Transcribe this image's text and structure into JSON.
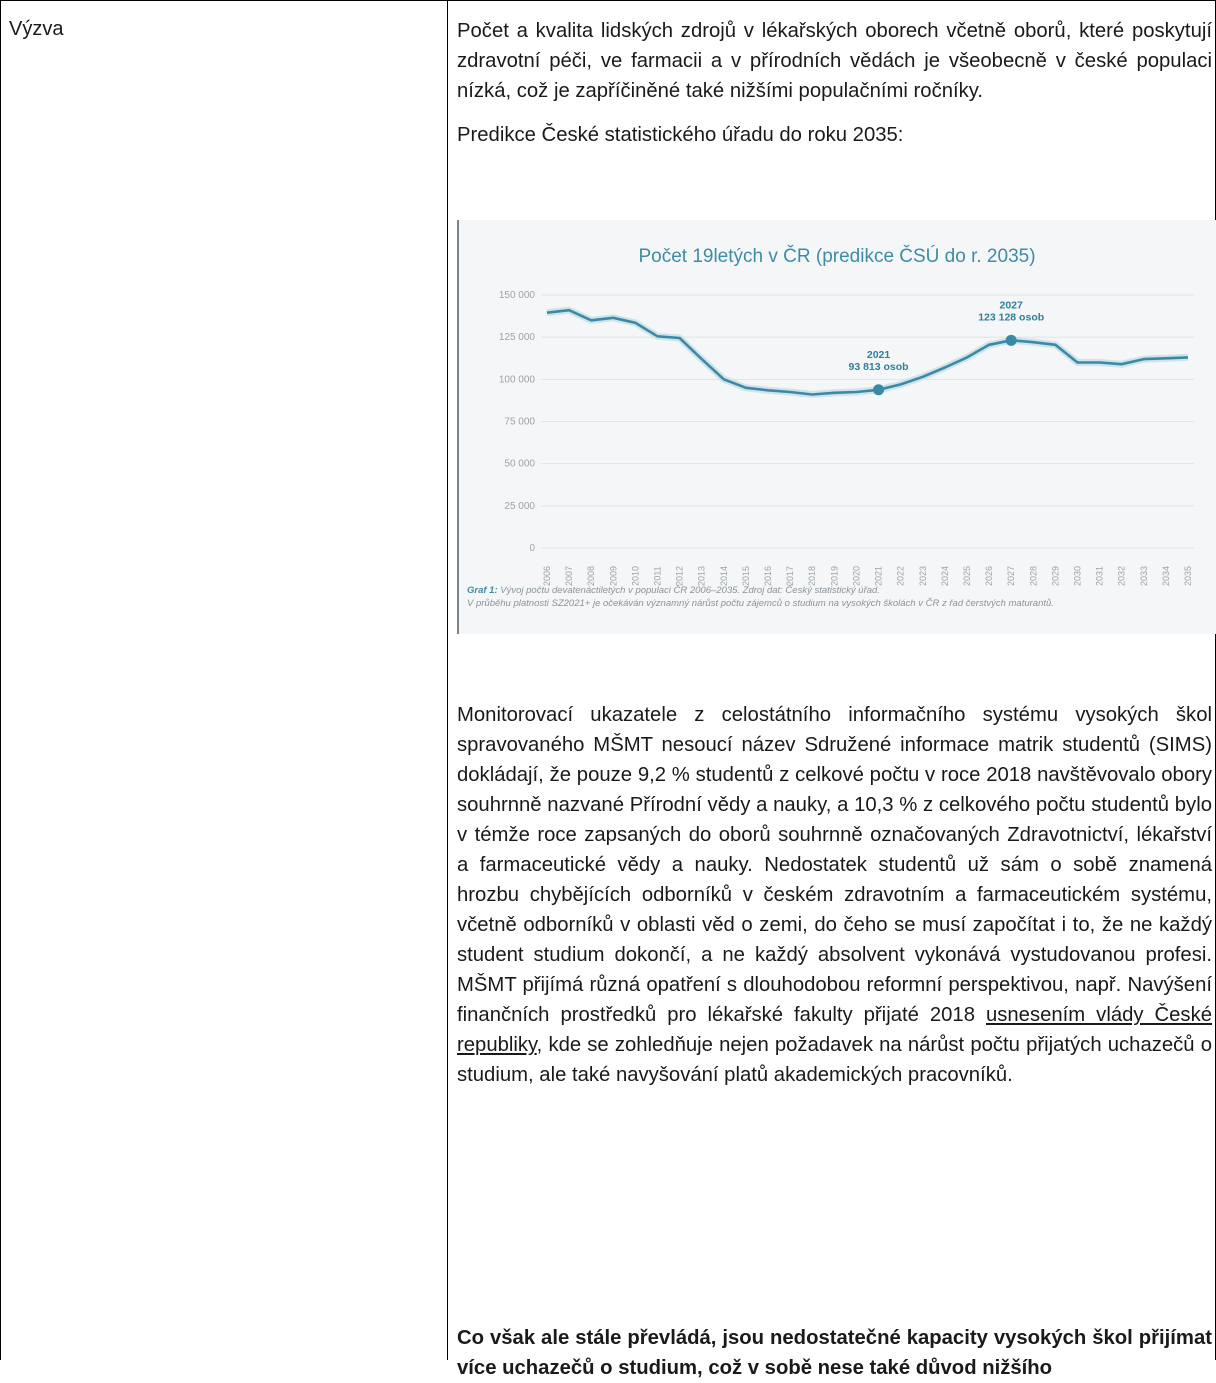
{
  "table": {
    "row_label": "Výzva"
  },
  "content": {
    "para1": "Počet a kvalita lidských zdrojů v lékařských oborech včetně oborů, které poskytují zdravotní péči, ve farmacii a v přírodních vědách je všeobecně v české populaci nízká, což je zapříčiněné také nižšími populačními ročníky.",
    "para2": "Predikce České statistického úřadu do roku 2035:",
    "para3_before_link": "Monitorovací ukazatele z celostátního informačního systému vysokých škol spravovaného MŠMT nesoucí název Sdružené informace matrik studentů (SIMS) dokládají, že pouze 9,2 % studentů z celkové počtu v roce 2018 navštěvovalo obory souhrnně nazvané Přírodní vědy a nauky, a 10,3 % z celkového počtu studentů bylo v témže roce zapsaných do oborů souhrnně označovaných Zdravotnictví, lékařství a farmaceutické vědy a nauky. Nedostatek studentů už sám o sobě znamená hrozbu chybějících odborníků v českém zdravotním a farmaceutickém systému, včetně odborníků v oblasti věd o zemi, do čeho se musí započítat i to, že ne každý student studium dokončí, a ne každý absolvent vykonává vystudovanou profesi. MŠMT přijímá různá opatření s dlouhodobou reformní perspektivou, např. Navýšení finančních prostředků pro lékařské fakulty přijaté 2018 ",
    "para3_link": "usnesením vlády České republiky",
    "para3_after_link": ", kde se zohledňuje nejen požadavek na nárůst počtu přijatých uchazečů o studium, ale také navyšování platů akademických pracovníků.",
    "para4": "Co však ale stále převládá, jsou nedostatečné kapacity vysokých škol přijímat více uchazečů o studium, což v sobě nese také důvod nižšího"
  },
  "chart_data": {
    "type": "line",
    "title": "Počet 19letých v ČR (predikce ČSÚ do r. 2035)",
    "x": [
      "2006",
      "2007",
      "2008",
      "2009",
      "2010",
      "2011",
      "2012",
      "2013",
      "2014",
      "2015",
      "2016",
      "2017",
      "2018",
      "2019",
      "2020",
      "2021",
      "2022",
      "2023",
      "2024",
      "2025",
      "2026",
      "2027",
      "2028",
      "2029",
      "2030",
      "2031",
      "2032",
      "2033",
      "2034",
      "2035"
    ],
    "values": [
      139500,
      141000,
      135000,
      136500,
      133500,
      125500,
      124500,
      112000,
      100000,
      95000,
      93500,
      92500,
      91000,
      92000,
      92500,
      93813,
      97000,
      101500,
      107000,
      113000,
      120500,
      123128,
      122000,
      120500,
      110000,
      110000,
      109000,
      112000,
      112500,
      113000
    ],
    "yticks": [
      "0",
      "25 000",
      "50 000",
      "75 000",
      "100 000",
      "125 000",
      "150 000"
    ],
    "ylim": [
      0,
      150000
    ],
    "grid": true,
    "color": "#3a8aa6",
    "annotations": [
      {
        "x": "2021",
        "year": "2021",
        "text": "93 813 osob"
      },
      {
        "x": "2027",
        "year": "2027",
        "text": "123 128 osob"
      }
    ],
    "caption_label": "Graf 1:",
    "caption_text": "Vývoj počtu devatenáctiletých v populaci ČR 2006–2035. Zdroj dat: Český statistický úřad.",
    "caption_note": "V průběhu platnosti SZ2021+ je očekáván významný nárůst počtu zájemců o studium na vysokých školách v ČR z řad čerstvých maturantů."
  }
}
